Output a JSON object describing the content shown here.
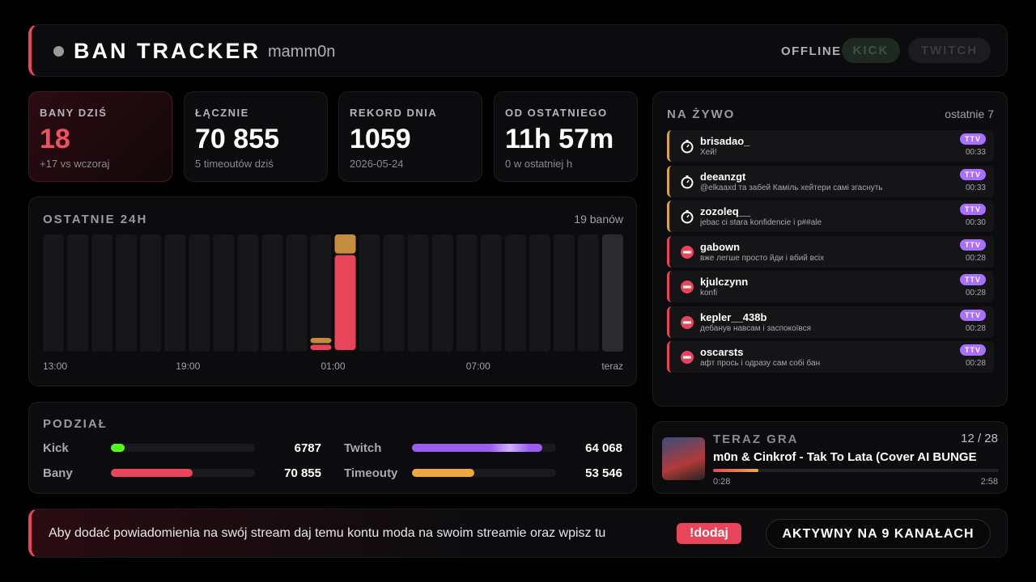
{
  "header": {
    "title": "BAN TRACKER",
    "channel": "mamm0n",
    "status": "OFFLINE",
    "buttons": [
      "KICK",
      "TWITCH"
    ]
  },
  "stats": [
    {
      "label": "BANY DZIŚ",
      "value": "18",
      "sub": "+17 vs wczoraj"
    },
    {
      "label": "ŁĄCZNIE",
      "value": "70 855",
      "sub": "5 timeoutów dziś"
    },
    {
      "label": "REKORD DNIA",
      "value": "1059",
      "sub": "2026-05-24"
    },
    {
      "label": "OD OSTATNIEGO",
      "value": "11h 57m",
      "sub": "0 w ostatniej h"
    }
  ],
  "chart_data": {
    "type": "bar",
    "stacked": true,
    "title": "OSTATNIE 24H",
    "note": "19 banów",
    "x_labels": [
      "13:00",
      "19:00",
      "01:00",
      "07:00",
      "teraz"
    ],
    "series": [
      {
        "color": "#e8455a",
        "values": [
          0,
          0,
          0,
          0,
          0,
          0,
          0,
          0,
          0,
          0,
          0,
          1,
          14,
          0,
          0,
          0,
          0,
          0,
          0,
          0,
          0,
          0,
          0,
          0
        ]
      },
      {
        "color": "#c58c3f",
        "values": [
          0,
          0,
          0,
          0,
          0,
          0,
          0,
          0,
          0,
          0,
          0,
          1,
          3,
          0,
          0,
          0,
          0,
          0,
          0,
          0,
          0,
          0,
          0,
          0
        ]
      }
    ]
  },
  "split": {
    "title": "PODZIAŁ",
    "rows": [
      [
        {
          "label": "Kick",
          "value": 6787,
          "color": "#53fc18"
        },
        {
          "label": "Twitch",
          "value": 64068,
          "value_label": "64 068",
          "color": "#9b5cf0"
        }
      ],
      [
        {
          "label": "Bany",
          "value": 70855,
          "value_label": "70 855",
          "color": "#e8455a"
        },
        {
          "label": "Timeouty",
          "value": 53546,
          "value_label": "53 546",
          "color": "#f0a83c"
        }
      ]
    ]
  },
  "live": {
    "title": "NA ŻYWO",
    "note": "ostatnie 7",
    "items": [
      {
        "kind": "timeout",
        "user": "brisadao_",
        "message": "Хей!",
        "badge": "TTV",
        "time": "00:33"
      },
      {
        "kind": "timeout",
        "user": "deeanzgt",
        "message": "@elkaaxd та забей Каміль хейтери самі згаснуть",
        "badge": "TTV",
        "time": "00:33"
      },
      {
        "kind": "timeout",
        "user": "zozoleq__",
        "message": "jebac ci stara konfidencie i p##ale",
        "badge": "TTV",
        "time": "00:30"
      },
      {
        "kind": "ban",
        "user": "gabown",
        "message": "вже легше просто йди і вбий всіх",
        "badge": "TTV",
        "time": "00:28"
      },
      {
        "kind": "ban",
        "user": "kjulczynn",
        "message": "konfi",
        "badge": "TTV",
        "time": "00:28"
      },
      {
        "kind": "ban",
        "user": "kepler__438b",
        "message": "дебанув навсам і заспокоївся",
        "badge": "TTV",
        "time": "00:28"
      },
      {
        "kind": "ban",
        "user": "oscarsts",
        "message": "афт прось і одразу сам собі бан",
        "badge": "TTV",
        "time": "00:28"
      }
    ]
  },
  "now_playing": {
    "title": "TERAZ GRA",
    "track": "12 / 28",
    "song": "m0n & Cinkrof - Tak To Lata (Cover AI BUNGE",
    "elapsed": "0:28",
    "duration": "2:58"
  },
  "footer": {
    "text": "Aby dodać powiadomienia na swój stream daj temu kontu moda na swoim streamie oraz wpisz tu",
    "command": "!dodaj",
    "active": "AKTYWNY NA 9 KANAŁACH"
  }
}
